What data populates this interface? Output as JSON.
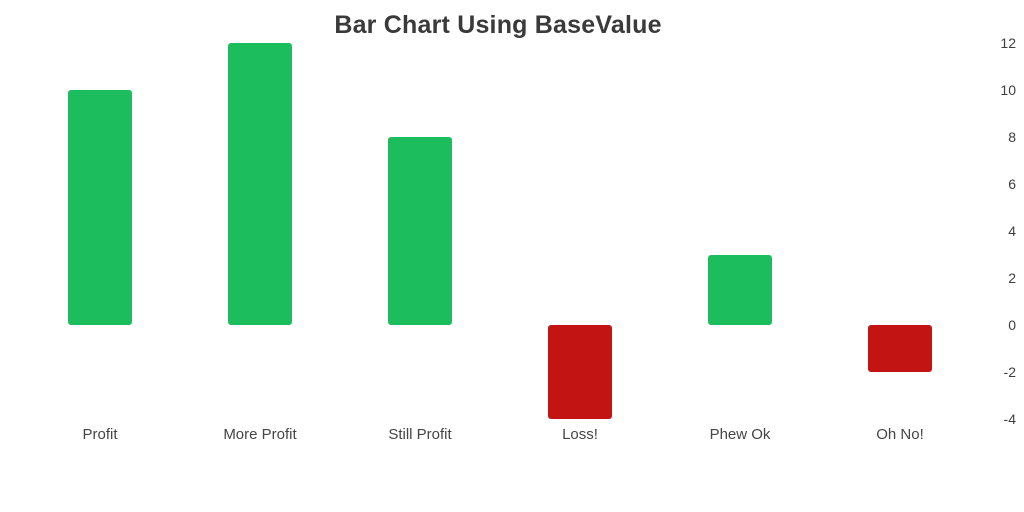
{
  "chart_data": {
    "type": "bar",
    "title": "Bar Chart Using BaseValue",
    "categories": [
      "Profit",
      "More Profit",
      "Still Profit",
      "Loss!",
      "Phew Ok",
      "Oh No!"
    ],
    "values": [
      10,
      12,
      8,
      -4,
      3,
      -2
    ],
    "base_value": 0,
    "xlabel": "",
    "ylabel": "",
    "ylim": [
      -4,
      12
    ],
    "y_ticks": [
      12,
      10,
      8,
      6,
      4,
      2,
      0,
      -2,
      -4
    ],
    "y_axis_position": "right",
    "grid": false,
    "legend": "none",
    "colors": {
      "positive": "#1bbd5c",
      "negative": "#c31414",
      "title": "#3a3a3a",
      "tick_label": "#3f3f3f",
      "category_label": "#454545",
      "background": "#ffffff"
    }
  }
}
